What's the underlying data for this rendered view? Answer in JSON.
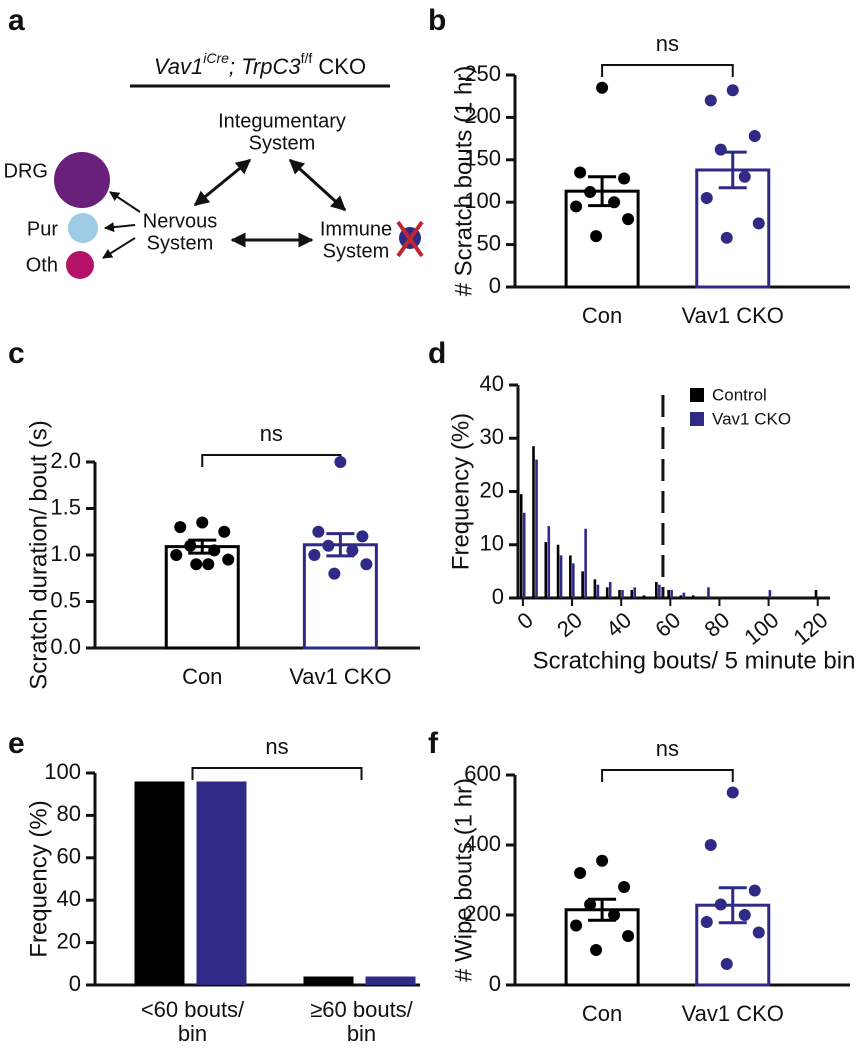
{
  "diagram": {
    "panel": "a",
    "title": [
      "Vav1",
      "iCre",
      "; TrpC3",
      "f/f",
      " CKO"
    ],
    "nodes": [
      {
        "label": [
          "Integumentary",
          "System"
        ]
      },
      {
        "label": [
          "Nervous",
          "System"
        ]
      },
      {
        "label": [
          "Immune",
          "System"
        ]
      }
    ],
    "cells": [
      "DRG",
      "Pur",
      "Oth"
    ]
  },
  "chart_data": [
    {
      "type": "bar_dot",
      "panel": "b",
      "ylabel": "# Scratch bouts (1 hr)",
      "annotation": "ns",
      "categories": [
        "Con",
        "Vav1 CKO"
      ],
      "colors": [
        "#000000",
        "#2e2a86"
      ],
      "values": [
        113,
        138
      ],
      "errors": [
        17,
        21
      ],
      "points": [
        [
          235,
          135,
          128,
          112,
          100,
          95,
          80,
          60
        ],
        [
          232,
          220,
          178,
          162,
          130,
          105,
          75,
          58
        ]
      ],
      "ylim": [
        0,
        250
      ],
      "yticks": [
        0,
        50,
        100,
        150,
        200,
        250
      ]
    },
    {
      "type": "bar_dot",
      "panel": "c",
      "ylabel": "Scratch duration/ bout (s)",
      "annotation": "ns",
      "categories": [
        "Con",
        "Vav1 CKO"
      ],
      "colors": [
        "#000000",
        "#2e2a86"
      ],
      "values": [
        1.09,
        1.11
      ],
      "errors": [
        0.07,
        0.12
      ],
      "points": [
        [
          1.35,
          1.3,
          1.25,
          1.1,
          1.05,
          1.0,
          0.95,
          0.9,
          0.9
        ],
        [
          2.0,
          1.25,
          1.2,
          1.1,
          1.05,
          1.0,
          0.9,
          0.8
        ]
      ],
      "ylim": [
        0,
        2
      ],
      "yticks": [
        {
          "value": 0,
          "label": "0.0"
        },
        {
          "value": 0.5,
          "label": "0.5"
        },
        {
          "value": 1,
          "label": "1.0"
        },
        {
          "value": 1.5,
          "label": "1.5"
        },
        {
          "value": 2,
          "label": "2.0"
        }
      ]
    },
    {
      "type": "histogram",
      "panel": "d",
      "ylabel": "Frequency (%)",
      "xlabel": "Scratching bouts/ 5 minute bin",
      "x": [
        0,
        5,
        10,
        15,
        20,
        25,
        30,
        35,
        40,
        45,
        50,
        55,
        60,
        65,
        70,
        75,
        80,
        85,
        90,
        95,
        100,
        105,
        110,
        115,
        120
      ],
      "series": [
        {
          "name": "Control",
          "color": "#000000",
          "values": [
            19.5,
            28.5,
            10.5,
            10,
            8,
            5,
            3.5,
            2,
            1.5,
            1.5,
            0.5,
            3,
            1.5,
            0.5,
            0.5,
            0,
            0,
            0,
            0,
            0,
            0,
            0,
            0,
            0,
            1.5
          ]
        },
        {
          "name": "Vav1 CKO",
          "color": "#2e2a86",
          "values": [
            16,
            26,
            13.5,
            8,
            6.5,
            13,
            2.5,
            3,
            1.5,
            2,
            0,
            2.5,
            1.5,
            1,
            0,
            2,
            0,
            0,
            0,
            0,
            1.5,
            0,
            0,
            0,
            0
          ]
        }
      ],
      "reference_x": 57,
      "xlim": [
        -2,
        125
      ],
      "xticks": [
        0,
        20,
        40,
        60,
        80,
        100,
        120
      ],
      "ylim": [
        0,
        40
      ],
      "yticks": [
        0,
        10,
        20,
        30,
        40
      ]
    },
    {
      "type": "bar",
      "panel": "e",
      "ylabel": "Frequency (%)",
      "annotation": "ns",
      "categories": [
        [
          "<60 bouts/",
          "bin"
        ],
        [
          "≥60 bouts/",
          "bin"
        ]
      ],
      "series": [
        {
          "color": "#000000",
          "values": [
            96,
            4
          ]
        },
        {
          "color": "#2e2a86",
          "values": [
            96,
            4
          ]
        }
      ],
      "ylim": [
        0,
        100
      ],
      "yticks": [
        0,
        20,
        40,
        60,
        80,
        100
      ]
    },
    {
      "type": "bar_dot",
      "panel": "f",
      "ylabel": "# Wipe bouts (1 hr)",
      "annotation": "ns",
      "categories": [
        "Con",
        "Vav1 CKO"
      ],
      "colors": [
        "#000000",
        "#2e2a86"
      ],
      "values": [
        215,
        228
      ],
      "errors": [
        30,
        50
      ],
      "points": [
        [
          355,
          320,
          280,
          230,
          200,
          170,
          140,
          100
        ],
        [
          550,
          400,
          270,
          230,
          200,
          180,
          150,
          60
        ]
      ],
      "ylim": [
        0,
        600
      ],
      "yticks": [
        0,
        200,
        400,
        600
      ]
    }
  ]
}
